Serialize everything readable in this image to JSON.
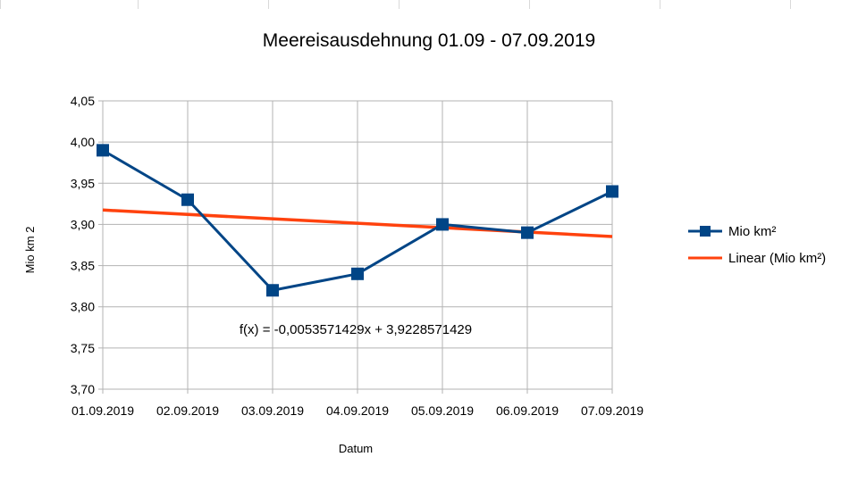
{
  "chart_data": {
    "type": "line",
    "title": "Meereisausdehnung 01.09 - 07.09.2019",
    "xlabel": "Datum",
    "ylabel": "Mio km 2",
    "categories": [
      "01.09.2019",
      "02.09.2019",
      "03.09.2019",
      "04.09.2019",
      "05.09.2019",
      "06.09.2019",
      "07.09.2019"
    ],
    "series": [
      {
        "name": "Mio km²",
        "values": [
          3.99,
          3.93,
          3.82,
          3.84,
          3.9,
          3.89,
          3.94
        ],
        "color": "#004586",
        "marker": "square"
      }
    ],
    "trendline": {
      "name": "Linear (Mio km²)",
      "slope": -0.0053571429,
      "intercept": 3.9228571429,
      "color": "#ff420e",
      "equation": "f(x) = -0,0053571429x + 3,9228571429"
    },
    "ylim": [
      3.7,
      4.05
    ],
    "yticks": [
      "3,70",
      "3,75",
      "3,80",
      "3,85",
      "3,90",
      "3,95",
      "4,00",
      "4,05"
    ],
    "grid": true,
    "legend": "right"
  }
}
